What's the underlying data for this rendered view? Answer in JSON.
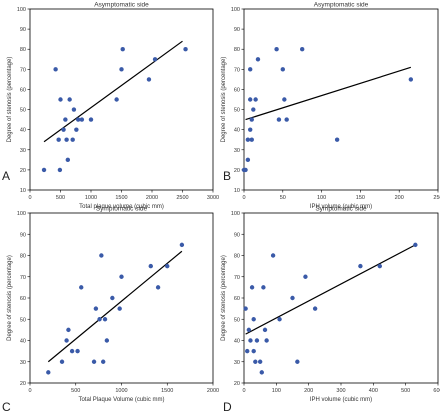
{
  "panels": [
    {
      "letter": "A",
      "chart_data": {
        "type": "scatter",
        "title": "Asymptomatic side",
        "xlabel": "Total plaque volume (cubic mm)",
        "ylabel": "Degree of stenosis (percentage)",
        "xlim": [
          0,
          3000
        ],
        "ylim": [
          10,
          100
        ],
        "xticks": [
          0,
          500,
          1000,
          1500,
          2000,
          2500,
          3000
        ],
        "yticks": [
          10,
          20,
          30,
          40,
          50,
          60,
          70,
          80,
          90,
          100
        ],
        "grid": false,
        "points": [
          {
            "x": 230,
            "y": 20
          },
          {
            "x": 420,
            "y": 70
          },
          {
            "x": 470,
            "y": 35
          },
          {
            "x": 490,
            "y": 20
          },
          {
            "x": 500,
            "y": 55
          },
          {
            "x": 550,
            "y": 40
          },
          {
            "x": 580,
            "y": 45
          },
          {
            "x": 600,
            "y": 35
          },
          {
            "x": 620,
            "y": 25
          },
          {
            "x": 650,
            "y": 55
          },
          {
            "x": 700,
            "y": 35
          },
          {
            "x": 720,
            "y": 50
          },
          {
            "x": 760,
            "y": 40
          },
          {
            "x": 790,
            "y": 45
          },
          {
            "x": 850,
            "y": 45
          },
          {
            "x": 1000,
            "y": 45
          },
          {
            "x": 1420,
            "y": 55
          },
          {
            "x": 1500,
            "y": 70
          },
          {
            "x": 1520,
            "y": 80
          },
          {
            "x": 1950,
            "y": 65
          },
          {
            "x": 2050,
            "y": 75
          },
          {
            "x": 2550,
            "y": 80
          }
        ],
        "fit_line": [
          {
            "x": 230,
            "y": 34
          },
          {
            "x": 2500,
            "y": 84
          }
        ]
      }
    },
    {
      "letter": "B",
      "chart_data": {
        "type": "scatter",
        "title": "Asymptomatic side",
        "xlabel": "IPH volume (cubic mm)",
        "ylabel": "Degree of stenosis (percentage)",
        "xlim": [
          0,
          250
        ],
        "ylim": [
          10,
          100
        ],
        "xticks": [
          0,
          50,
          100,
          150,
          200,
          250
        ],
        "yticks": [
          10,
          20,
          30,
          40,
          50,
          60,
          70,
          80,
          90,
          100
        ],
        "grid": false,
        "points": [
          {
            "x": 0,
            "y": 20
          },
          {
            "x": 2,
            "y": 20
          },
          {
            "x": 5,
            "y": 25
          },
          {
            "x": 5,
            "y": 35
          },
          {
            "x": 8,
            "y": 40
          },
          {
            "x": 8,
            "y": 55
          },
          {
            "x": 10,
            "y": 45
          },
          {
            "x": 10,
            "y": 35
          },
          {
            "x": 12,
            "y": 50
          },
          {
            "x": 15,
            "y": 55
          },
          {
            "x": 18,
            "y": 75
          },
          {
            "x": 8,
            "y": 70
          },
          {
            "x": 42,
            "y": 80
          },
          {
            "x": 45,
            "y": 45
          },
          {
            "x": 50,
            "y": 70
          },
          {
            "x": 52,
            "y": 55
          },
          {
            "x": 55,
            "y": 45
          },
          {
            "x": 75,
            "y": 80
          },
          {
            "x": 120,
            "y": 35
          },
          {
            "x": 215,
            "y": 65
          }
        ],
        "fit_line": [
          {
            "x": 2,
            "y": 45
          },
          {
            "x": 215,
            "y": 71
          }
        ]
      }
    },
    {
      "letter": "C",
      "chart_data": {
        "type": "scatter",
        "title": "Symptomatic side",
        "xlabel": "Total Plaque Volume (cubic mm)",
        "ylabel": "Degree of stenosis (percentage)",
        "xlim": [
          0,
          2000
        ],
        "ylim": [
          20,
          100
        ],
        "xticks": [
          0,
          500,
          1000,
          1500,
          2000
        ],
        "yticks": [
          20,
          30,
          40,
          50,
          60,
          70,
          80,
          90,
          100
        ],
        "grid": false,
        "points": [
          {
            "x": 200,
            "y": 25
          },
          {
            "x": 350,
            "y": 30
          },
          {
            "x": 400,
            "y": 40
          },
          {
            "x": 420,
            "y": 45
          },
          {
            "x": 460,
            "y": 35
          },
          {
            "x": 520,
            "y": 35
          },
          {
            "x": 560,
            "y": 65
          },
          {
            "x": 700,
            "y": 30
          },
          {
            "x": 720,
            "y": 55
          },
          {
            "x": 760,
            "y": 50
          },
          {
            "x": 780,
            "y": 80
          },
          {
            "x": 800,
            "y": 30
          },
          {
            "x": 820,
            "y": 50
          },
          {
            "x": 840,
            "y": 40
          },
          {
            "x": 900,
            "y": 60
          },
          {
            "x": 980,
            "y": 55
          },
          {
            "x": 1000,
            "y": 70
          },
          {
            "x": 1320,
            "y": 75
          },
          {
            "x": 1400,
            "y": 65
          },
          {
            "x": 1500,
            "y": 75
          },
          {
            "x": 1660,
            "y": 85
          }
        ],
        "fit_line": [
          {
            "x": 200,
            "y": 30
          },
          {
            "x": 1660,
            "y": 82
          }
        ]
      }
    },
    {
      "letter": "D",
      "chart_data": {
        "type": "scatter",
        "title": "Symptomatic side",
        "xlabel": "IPH volume (cubic mm)",
        "ylabel": "Degree of stenosis (percentage)",
        "xlim": [
          0,
          600
        ],
        "ylim": [
          20,
          100
        ],
        "xticks": [
          0,
          100,
          200,
          300,
          400,
          500,
          600
        ],
        "yticks": [
          20,
          30,
          40,
          50,
          60,
          70,
          80,
          90,
          100
        ],
        "grid": false,
        "points": [
          {
            "x": 5,
            "y": 55
          },
          {
            "x": 10,
            "y": 35
          },
          {
            "x": 15,
            "y": 45
          },
          {
            "x": 20,
            "y": 40
          },
          {
            "x": 25,
            "y": 65
          },
          {
            "x": 30,
            "y": 35
          },
          {
            "x": 30,
            "y": 50
          },
          {
            "x": 35,
            "y": 30
          },
          {
            "x": 40,
            "y": 40
          },
          {
            "x": 50,
            "y": 30
          },
          {
            "x": 55,
            "y": 25
          },
          {
            "x": 60,
            "y": 65
          },
          {
            "x": 65,
            "y": 45
          },
          {
            "x": 70,
            "y": 40
          },
          {
            "x": 90,
            "y": 80
          },
          {
            "x": 110,
            "y": 50
          },
          {
            "x": 150,
            "y": 60
          },
          {
            "x": 165,
            "y": 30
          },
          {
            "x": 190,
            "y": 70
          },
          {
            "x": 220,
            "y": 55
          },
          {
            "x": 360,
            "y": 75
          },
          {
            "x": 420,
            "y": 75
          },
          {
            "x": 530,
            "y": 85
          }
        ],
        "fit_line": [
          {
            "x": 5,
            "y": 43
          },
          {
            "x": 530,
            "y": 85
          }
        ]
      }
    }
  ]
}
